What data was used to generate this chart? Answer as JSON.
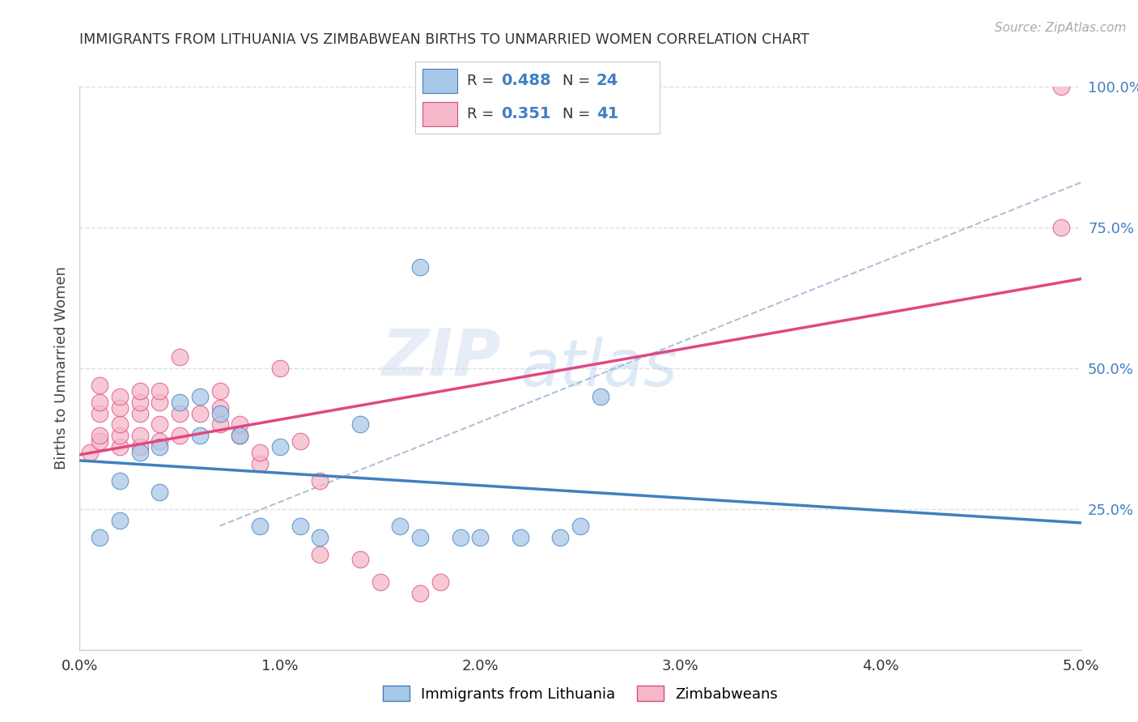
{
  "title": "IMMIGRANTS FROM LITHUANIA VS ZIMBABWEAN BIRTHS TO UNMARRIED WOMEN CORRELATION CHART",
  "source": "Source: ZipAtlas.com",
  "ylabel": "Births to Unmarried Women",
  "legend_label1": "Immigrants from Lithuania",
  "legend_label2": "Zimbabweans",
  "r1": 0.488,
  "n1": 24,
  "r2": 0.351,
  "n2": 41,
  "xlim": [
    0.0,
    0.05
  ],
  "ylim": [
    0.0,
    1.0
  ],
  "xtick_labels": [
    "0.0%",
    "1.0%",
    "2.0%",
    "3.0%",
    "4.0%",
    "5.0%"
  ],
  "xtick_vals": [
    0.0,
    0.01,
    0.02,
    0.03,
    0.04,
    0.05
  ],
  "ytick_labels": [
    "25.0%",
    "50.0%",
    "75.0%",
    "100.0%"
  ],
  "ytick_vals": [
    0.25,
    0.5,
    0.75,
    1.0
  ],
  "color_blue": "#a8c8e8",
  "color_pink": "#f4b8c8",
  "color_line_blue": "#4080c0",
  "color_line_pink": "#e04880",
  "color_dashed": "#a0b8d0",
  "blue_x": [
    0.001,
    0.002,
    0.002,
    0.003,
    0.004,
    0.004,
    0.005,
    0.006,
    0.006,
    0.007,
    0.008,
    0.009,
    0.01,
    0.011,
    0.012,
    0.014,
    0.016,
    0.017,
    0.019,
    0.02,
    0.022,
    0.024,
    0.025,
    0.026
  ],
  "blue_y": [
    0.2,
    0.23,
    0.3,
    0.35,
    0.28,
    0.36,
    0.44,
    0.38,
    0.45,
    0.42,
    0.38,
    0.22,
    0.36,
    0.22,
    0.2,
    0.4,
    0.22,
    0.2,
    0.2,
    0.2,
    0.2,
    0.2,
    0.22,
    0.45
  ],
  "blue_outlier_x": [
    0.017
  ],
  "blue_outlier_y": [
    0.68
  ],
  "pink_x": [
    0.0005,
    0.001,
    0.001,
    0.001,
    0.001,
    0.001,
    0.002,
    0.002,
    0.002,
    0.002,
    0.002,
    0.003,
    0.003,
    0.003,
    0.003,
    0.003,
    0.004,
    0.004,
    0.004,
    0.004,
    0.005,
    0.005,
    0.005,
    0.006,
    0.007,
    0.007,
    0.007,
    0.008,
    0.008,
    0.009,
    0.009,
    0.01,
    0.011,
    0.012,
    0.012,
    0.014,
    0.015,
    0.017,
    0.018,
    0.049,
    0.049
  ],
  "pink_y": [
    0.35,
    0.37,
    0.38,
    0.42,
    0.44,
    0.47,
    0.36,
    0.38,
    0.4,
    0.43,
    0.45,
    0.36,
    0.38,
    0.42,
    0.44,
    0.46,
    0.37,
    0.4,
    0.44,
    0.46,
    0.38,
    0.42,
    0.52,
    0.42,
    0.4,
    0.43,
    0.46,
    0.38,
    0.4,
    0.33,
    0.35,
    0.5,
    0.37,
    0.17,
    0.3,
    0.16,
    0.12,
    0.1,
    0.12,
    0.75,
    1.0
  ],
  "watermark_line1": "ZIP",
  "watermark_line2": "atlas",
  "background_color": "#ffffff",
  "grid_color": "#d8d8d8"
}
